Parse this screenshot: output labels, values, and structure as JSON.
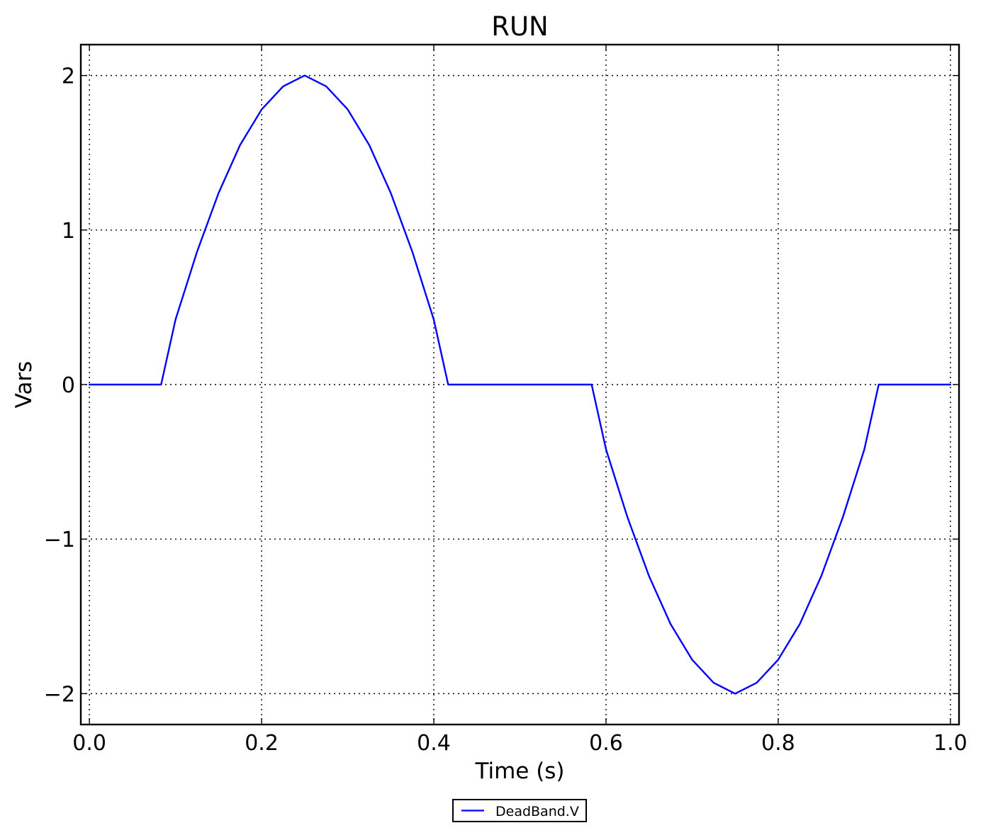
{
  "chart_data": {
    "type": "line",
    "title": "RUN",
    "xlabel": "Time (s)",
    "ylabel": "Vars",
    "xlim": [
      -0.01,
      1.01
    ],
    "ylim": [
      -2.2,
      2.2
    ],
    "xticks": [
      0.0,
      0.2,
      0.4,
      0.6,
      0.8,
      1.0
    ],
    "xtick_labels": [
      "0.0",
      "0.2",
      "0.4",
      "0.6",
      "0.8",
      "1.0"
    ],
    "yticks": [
      2,
      1,
      0,
      -1,
      -2
    ],
    "ytick_labels": [
      "2",
      "1",
      "0",
      "−1",
      "−2"
    ],
    "grid": true,
    "legend": {
      "placement": "bottom-center-outside",
      "entries": [
        "DeadBand.V"
      ]
    },
    "series": [
      {
        "name": "DeadBand.V",
        "color": "#0000ff",
        "x": [
          0.0,
          0.0833,
          0.1,
          0.125,
          0.15,
          0.175,
          0.2,
          0.225,
          0.25,
          0.275,
          0.3,
          0.325,
          0.35,
          0.375,
          0.4,
          0.4167,
          0.45,
          0.5,
          0.55,
          0.5833,
          0.6,
          0.625,
          0.65,
          0.675,
          0.7,
          0.725,
          0.75,
          0.775,
          0.8,
          0.825,
          0.85,
          0.875,
          0.9,
          0.9167,
          0.95,
          1.0
        ],
        "y": [
          0.0,
          0.0,
          0.42,
          0.86,
          1.24,
          1.55,
          1.78,
          1.93,
          2.0,
          1.93,
          1.78,
          1.55,
          1.24,
          0.86,
          0.42,
          0.0,
          0.0,
          0.0,
          0.0,
          0.0,
          -0.42,
          -0.86,
          -1.24,
          -1.55,
          -1.78,
          -1.93,
          -2.0,
          -1.93,
          -1.78,
          -1.55,
          -1.24,
          -0.86,
          -0.42,
          0.0,
          0.0,
          0.0
        ]
      }
    ]
  }
}
